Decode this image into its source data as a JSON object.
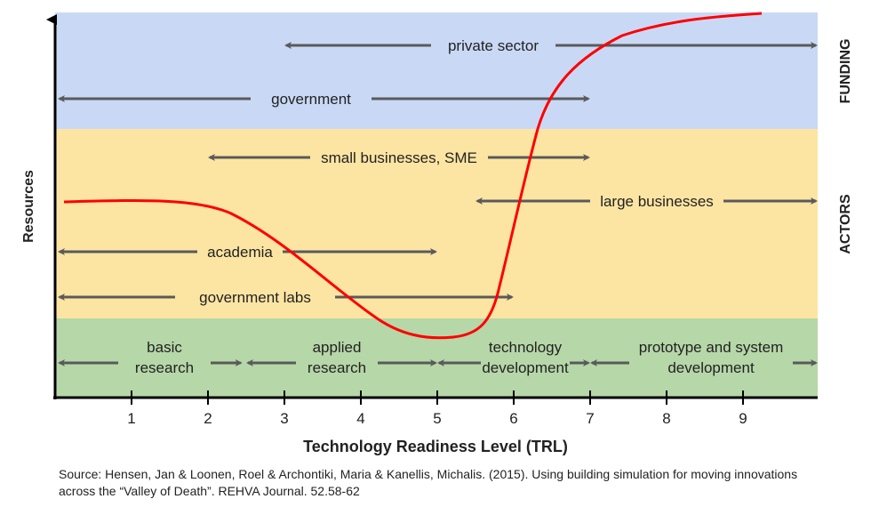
{
  "colors": {
    "funding_band": "#c9d9f5",
    "actors_band": "#fce5a3",
    "stages_band": "#b6d7a8",
    "arrow": "#5a5a5a",
    "curve": "#ff0000"
  },
  "axes": {
    "y_label": "Resources",
    "x_label": "Technology Readiness Level (TRL)",
    "x_ticks": [
      "1",
      "2",
      "3",
      "4",
      "5",
      "6",
      "7",
      "8",
      "9"
    ]
  },
  "bands": {
    "funding": "FUNDING",
    "actors": "ACTORS"
  },
  "funding": [
    {
      "label": "private sector",
      "trl_range": [
        3,
        10
      ]
    },
    {
      "label": "government",
      "trl_range": [
        0,
        7
      ]
    }
  ],
  "actors": [
    {
      "label": "small businesses, SME",
      "trl_range": [
        2,
        7
      ]
    },
    {
      "label": "large businesses",
      "trl_range": [
        5.5,
        10
      ]
    },
    {
      "label": "academia",
      "trl_range": [
        0,
        5
      ]
    },
    {
      "label": "government labs",
      "trl_range": [
        0,
        6
      ]
    }
  ],
  "stages": [
    {
      "line1": "basic",
      "line2": "research",
      "trl_range": [
        0,
        2.45
      ]
    },
    {
      "line1": "applied",
      "line2": "research",
      "trl_range": [
        2.5,
        5
      ]
    },
    {
      "line1": "technology",
      "line2": "development",
      "trl_range": [
        5,
        7
      ]
    },
    {
      "line1": "prototype and system",
      "line2": "development",
      "trl_range": [
        7,
        10
      ]
    }
  ],
  "source": {
    "line1": "Source: Hensen, Jan & Loonen, Roel & Archontiki, Maria & Kanellis, Michalis. (2015). Using building simulation for moving innovations",
    "line2": "across the “Valley of Death”. REHVA Journal. 52.58-62"
  }
}
